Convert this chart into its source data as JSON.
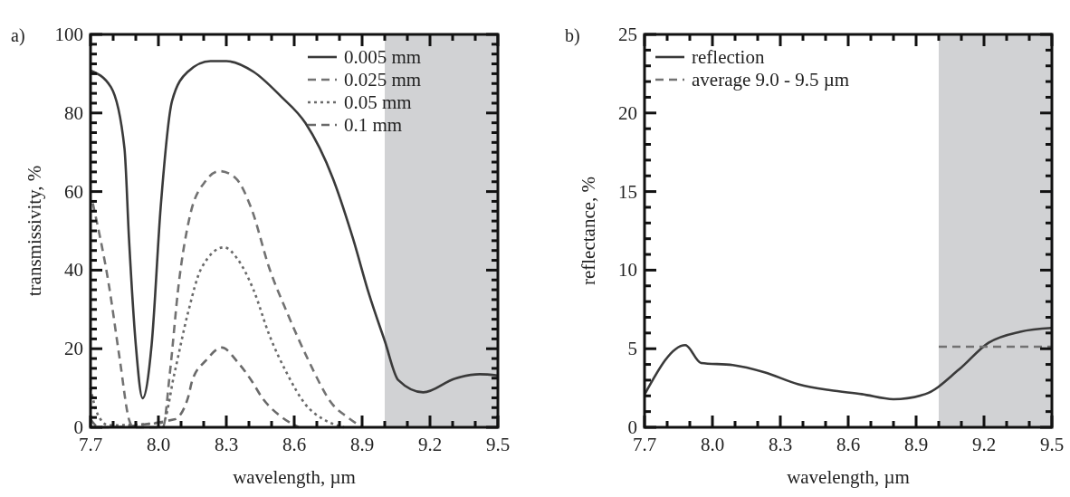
{
  "chart_data": [
    {
      "type": "line",
      "title": "a)",
      "xlabel": "wavelength, µm",
      "ylabel": "transmissivity, %",
      "xlim": [
        7.7,
        9.5
      ],
      "ylim": [
        0,
        100
      ],
      "xticks": [
        7.7,
        {
          "value": 7.8,
          "label": null
        },
        {
          "value": 7.9,
          "label": null
        },
        {
          "value": 8,
          "label": "8.0"
        },
        {
          "value": 8.1,
          "label": null
        },
        {
          "value": 8.2,
          "label": null
        },
        8.3,
        {
          "value": 8.4,
          "label": null
        },
        {
          "value": 8.5,
          "label": null
        },
        8.6,
        {
          "value": 8.7,
          "label": null
        },
        {
          "value": 8.8,
          "label": null
        },
        8.9,
        {
          "value": 9,
          "label": null
        },
        {
          "value": 9.1,
          "label": null
        },
        9.2,
        {
          "value": 9.3,
          "label": null
        },
        {
          "value": 9.4,
          "label": null
        },
        9.5
      ],
      "yticks": [
        0,
        {
          "value": 2.5,
          "label": null
        },
        {
          "value": 5,
          "label": null
        },
        {
          "value": 7.5,
          "label": null
        },
        {
          "value": 10,
          "label": null
        },
        {
          "value": 12.5,
          "label": null
        },
        {
          "value": 15,
          "label": null
        },
        {
          "value": 17.5,
          "label": null
        },
        20,
        {
          "value": 22.5,
          "label": null
        },
        {
          "value": 25,
          "label": null
        },
        {
          "value": 27.5,
          "label": null
        },
        {
          "value": 30,
          "label": null
        },
        {
          "value": 32.5,
          "label": null
        },
        {
          "value": 35,
          "label": null
        },
        {
          "value": 37.5,
          "label": null
        },
        40,
        {
          "value": 42.5,
          "label": null
        },
        {
          "value": 45,
          "label": null
        },
        {
          "value": 47.5,
          "label": null
        },
        {
          "value": 50,
          "label": null
        },
        {
          "value": 52.5,
          "label": null
        },
        {
          "value": 55,
          "label": null
        },
        {
          "value": 57.5,
          "label": null
        },
        60,
        {
          "value": 62.5,
          "label": null
        },
        {
          "value": 65,
          "label": null
        },
        {
          "value": 67.5,
          "label": null
        },
        {
          "value": 70,
          "label": null
        },
        {
          "value": 72.5,
          "label": null
        },
        {
          "value": 75,
          "label": null
        },
        {
          "value": 77.5,
          "label": null
        },
        80,
        {
          "value": 82.5,
          "label": null
        },
        {
          "value": 85,
          "label": null
        },
        {
          "value": 87.5,
          "label": null
        },
        {
          "value": 90,
          "label": null
        },
        {
          "value": 92.5,
          "label": null
        },
        {
          "value": 95,
          "label": null
        },
        {
          "value": 97.5,
          "label": null
        },
        100
      ],
      "bands": [
        {
          "axis": "x",
          "from": 9.0,
          "to": 9.5,
          "color": "#d1d2d4"
        }
      ],
      "legend": "top right",
      "series": [
        {
          "name": "0.005 mm",
          "color": "#3a3a3a",
          "line_style": "solid",
          "x": [
            7.7,
            7.79,
            7.85,
            7.87,
            7.9,
            7.93,
            7.97,
            8.01,
            8.06,
            8.13,
            8.23,
            8.3,
            8.42,
            8.54,
            8.65,
            8.77,
            8.86,
            8.93,
            9.0,
            9.06,
            9.17,
            9.31,
            9.42,
            9.5
          ],
          "values": [
            90.8,
            86.6,
            71,
            48,
            21,
            7.4,
            21,
            56,
            83,
            90.5,
            93.2,
            93.2,
            90.5,
            84.3,
            77.4,
            63.5,
            48,
            34,
            22,
            12,
            8.9,
            12.4,
            13.5,
            13.2
          ]
        },
        {
          "name": "0.025 mm",
          "color": "#727272",
          "line_style": "dashed",
          "x": [
            7.71,
            7.78,
            7.83,
            7.87,
            7.89,
            8.02,
            8.05,
            8.09,
            8.14,
            8.21,
            8.27,
            8.34,
            8.41,
            8.49,
            8.57,
            8.66,
            8.77,
            8.83,
            8.9
          ],
          "values": [
            57,
            36.6,
            17,
            2,
            0,
            0,
            13.5,
            36.6,
            54,
            62.8,
            65.2,
            63.5,
            55.8,
            40.5,
            29,
            17.4,
            5.8,
            2.8,
            0
          ]
        },
        {
          "name": "0.05 mm",
          "color": "#6a6a6a",
          "line_style": "dotted",
          "x": [
            7.7,
            7.73,
            7.78,
            8.02,
            8.07,
            8.13,
            8.19,
            8.29,
            8.35,
            8.42,
            8.49,
            8.57,
            8.65,
            8.73,
            8.82
          ],
          "values": [
            10,
            3.5,
            0.5,
            1.2,
            13.5,
            29,
            40.5,
            45.8,
            42.8,
            35,
            23.5,
            13.5,
            5.8,
            2,
            0
          ]
        },
        {
          "name": "0.1 mm",
          "color": "#6a6a6a",
          "line_style": "dashed",
          "x": [
            7.7,
            7.74,
            8.07,
            8.13,
            8.15,
            8.21,
            8.28,
            8.35,
            8.41,
            8.46,
            8.54,
            8.62
          ],
          "values": [
            2,
            0,
            2,
            7.4,
            12,
            17,
            20.3,
            16.6,
            12,
            7.4,
            2.8,
            0
          ]
        }
      ]
    },
    {
      "type": "line",
      "title": "b)",
      "xlabel": "wavelength, µm",
      "ylabel": "reflectance, %",
      "xlim": [
        7.7,
        9.5
      ],
      "ylim": [
        0,
        25
      ],
      "xticks": [
        7.7,
        {
          "value": 7.8,
          "label": null
        },
        {
          "value": 7.9,
          "label": null
        },
        {
          "value": 8,
          "label": "8.0"
        },
        {
          "value": 8.1,
          "label": null
        },
        {
          "value": 8.2,
          "label": null
        },
        8.3,
        {
          "value": 8.4,
          "label": null
        },
        {
          "value": 8.5,
          "label": null
        },
        8.6,
        {
          "value": 8.7,
          "label": null
        },
        {
          "value": 8.8,
          "label": null
        },
        8.9,
        {
          "value": 9,
          "label": null
        },
        {
          "value": 9.1,
          "label": null
        },
        9.2,
        {
          "value": 9.3,
          "label": null
        },
        {
          "value": 9.4,
          "label": null
        },
        9.5
      ],
      "yticks": [
        0,
        {
          "value": 1,
          "label": null
        },
        {
          "value": 2,
          "label": null
        },
        {
          "value": 3,
          "label": null
        },
        {
          "value": 4,
          "label": null
        },
        5,
        {
          "value": 6,
          "label": null
        },
        {
          "value": 7,
          "label": null
        },
        {
          "value": 8,
          "label": null
        },
        {
          "value": 9,
          "label": null
        },
        10,
        {
          "value": 11,
          "label": null
        },
        {
          "value": 12,
          "label": null
        },
        {
          "value": 13,
          "label": null
        },
        {
          "value": 14,
          "label": null
        },
        15,
        {
          "value": 16,
          "label": null
        },
        {
          "value": 17,
          "label": null
        },
        {
          "value": 18,
          "label": null
        },
        {
          "value": 19,
          "label": null
        },
        20,
        {
          "value": 21,
          "label": null
        },
        {
          "value": 22,
          "label": null
        },
        {
          "value": 23,
          "label": null
        },
        {
          "value": 24,
          "label": null
        },
        25
      ],
      "bands": [
        {
          "axis": "x",
          "from": 9.0,
          "to": 9.5,
          "color": "#d1d2d4"
        }
      ],
      "legend": "top left",
      "series": [
        {
          "name": "reflection",
          "color": "#3a3a3a",
          "line_style": "solid",
          "x": [
            7.7,
            7.88,
            7.95,
            8.09,
            8.23,
            8.38,
            8.52,
            8.66,
            8.8,
            8.94,
            9.09,
            9.22,
            9.36,
            9.5
          ],
          "values": [
            2.08,
            5.23,
            4.09,
            3.96,
            3.5,
            2.74,
            2.36,
            2.11,
            1.79,
            2.11,
            3.68,
            5.38,
            6.08,
            6.32
          ]
        },
        {
          "name": "average 9.0 - 9.5 µm",
          "color": "#727272",
          "line_style": "dashed",
          "x": [
            9.0,
            9.5
          ],
          "values": [
            5.13,
            5.13
          ]
        }
      ]
    }
  ]
}
